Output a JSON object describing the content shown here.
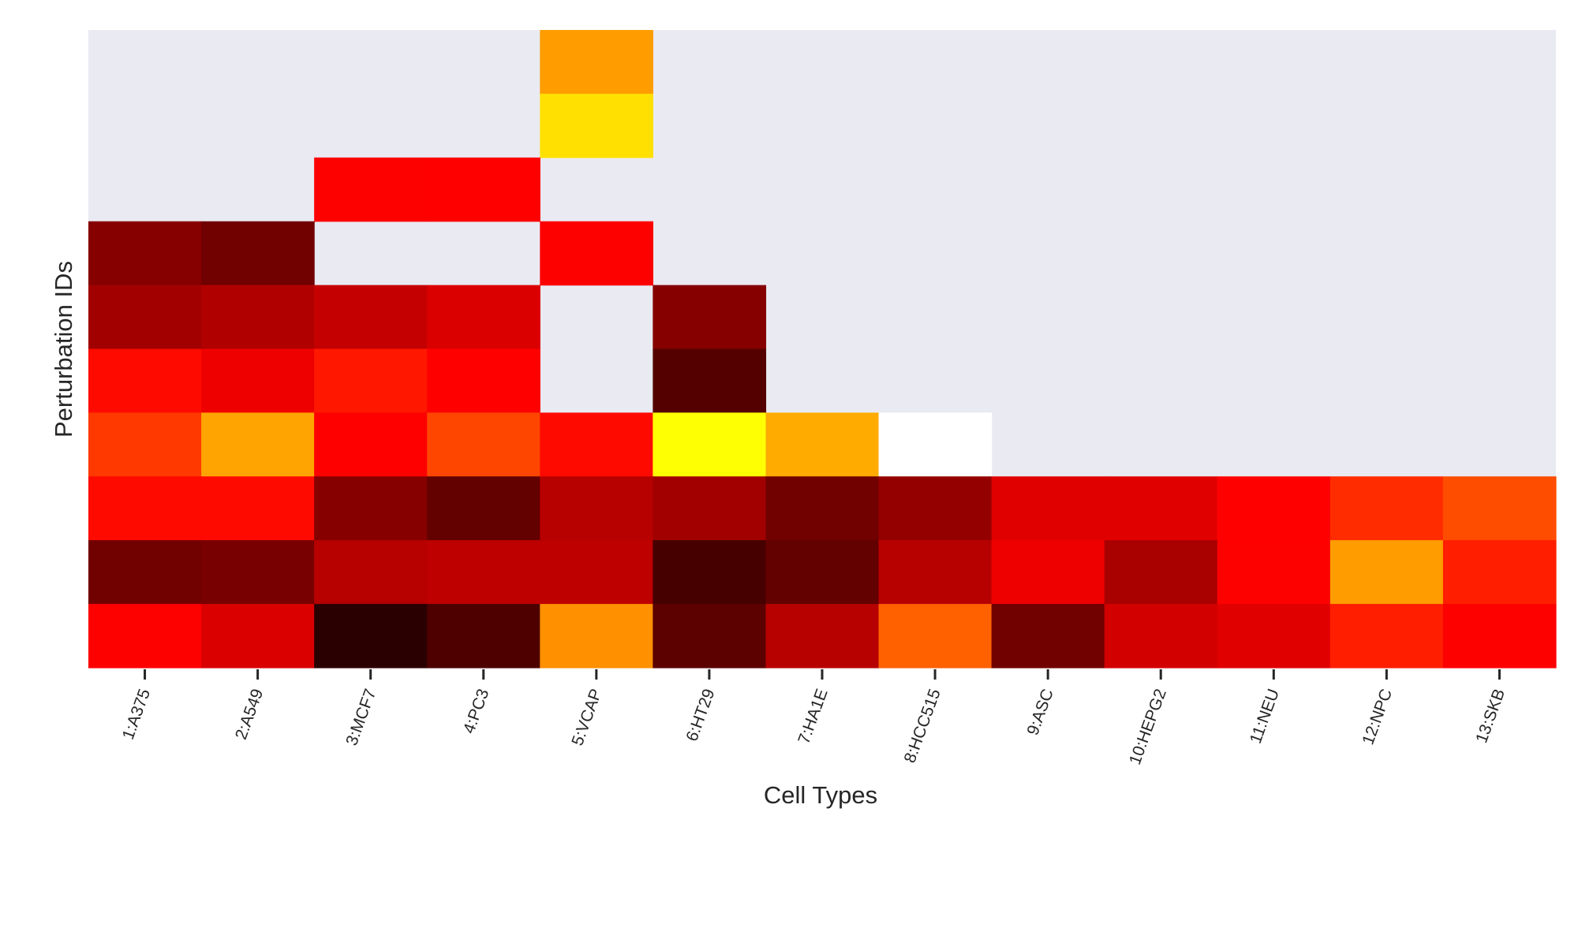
{
  "chart_data": {
    "type": "heatmap",
    "title": "",
    "xlabel": "Cell Types",
    "ylabel": "Perturbation IDs",
    "x_categories": [
      "1:A375",
      "2:A549",
      "3:MCF7",
      "4:PC3",
      "5:VCAP",
      "6:HT29",
      "7:HA1E",
      "8:HCC515",
      "9:ASC",
      "10:HEPG2",
      "11:NEU",
      "12:NPC",
      "13:SKB"
    ],
    "y_tick_labels_shown": false,
    "colormap": "hot",
    "missing_color": "#eaeaf2",
    "value_range": [
      0,
      1
    ],
    "values": [
      [
        null,
        null,
        null,
        null,
        0.6,
        null,
        null,
        null,
        null,
        null,
        null,
        null,
        null
      ],
      [
        null,
        null,
        null,
        null,
        0.7,
        null,
        null,
        null,
        null,
        null,
        null,
        null,
        null
      ],
      [
        null,
        null,
        0.32,
        0.34,
        null,
        null,
        null,
        null,
        null,
        null,
        null,
        null,
        null
      ],
      [
        0.15,
        0.12,
        null,
        null,
        0.32,
        null,
        null,
        null,
        null,
        null,
        null,
        null,
        null
      ],
      [
        0.19,
        0.21,
        0.24,
        0.27,
        null,
        0.15,
        null,
        null,
        null,
        null,
        null,
        null,
        null
      ],
      [
        0.38,
        0.3,
        0.4,
        0.33,
        null,
        0.08,
        null,
        null,
        null,
        null,
        null,
        null,
        null
      ],
      [
        0.45,
        0.61,
        0.34,
        0.47,
        0.38,
        0.75,
        0.62,
        1.0,
        null,
        null,
        null,
        null,
        null
      ],
      [
        0.38,
        0.38,
        0.15,
        0.1,
        0.22,
        0.19,
        0.12,
        0.17,
        0.28,
        0.28,
        0.34,
        0.43,
        0.48
      ],
      [
        0.12,
        0.13,
        0.22,
        0.23,
        0.23,
        0.06,
        0.1,
        0.22,
        0.3,
        0.2,
        0.32,
        0.6,
        0.41
      ],
      [
        0.32,
        0.27,
        0.02,
        0.07,
        0.58,
        0.09,
        0.22,
        0.51,
        0.12,
        0.26,
        0.28,
        0.41,
        0.32
      ]
    ]
  }
}
